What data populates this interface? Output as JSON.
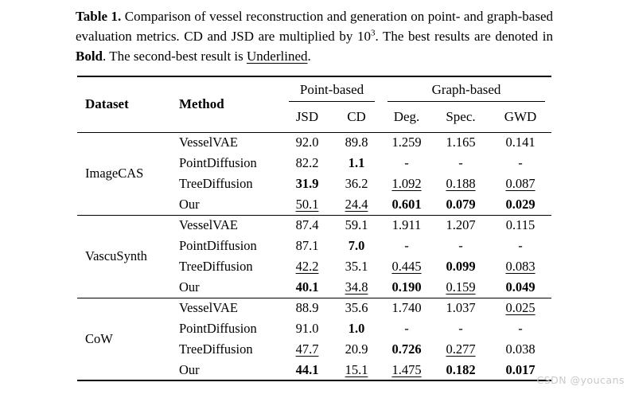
{
  "caption": {
    "label": "Table 1.",
    "part1": " Comparison of vessel reconstruction and generation on point- and graph-based evaluation metrics. CD and JSD are multiplied by 10",
    "exponent": "3",
    "part2": ". The best results are denoted in ",
    "bold_word": "Bold",
    "part3": ". The second-best result is ",
    "underlined_word": "Underlined",
    "part4": "."
  },
  "table": {
    "headers": {
      "dataset": "Dataset",
      "method": "Method",
      "point_group": "Point-based",
      "graph_group": "Graph-based",
      "metrics": [
        "JSD",
        "CD",
        "Deg.",
        "Spec.",
        "GWD"
      ]
    },
    "groups": [
      {
        "dataset": "ImageCAS",
        "rows": [
          {
            "method": "VesselVAE",
            "values": [
              {
                "v": "92.0",
                "s": "p"
              },
              {
                "v": "89.8",
                "s": "p"
              },
              {
                "v": "1.259",
                "s": "p"
              },
              {
                "v": "1.165",
                "s": "p"
              },
              {
                "v": "0.141",
                "s": "p"
              }
            ]
          },
          {
            "method": "PointDiffusion",
            "values": [
              {
                "v": "82.2",
                "s": "p"
              },
              {
                "v": "1.1",
                "s": "b"
              },
              {
                "v": "-",
                "s": "p"
              },
              {
                "v": "-",
                "s": "p"
              },
              {
                "v": "-",
                "s": "p"
              }
            ]
          },
          {
            "method": "TreeDiffusion",
            "values": [
              {
                "v": "31.9",
                "s": "b"
              },
              {
                "v": "36.2",
                "s": "p"
              },
              {
                "v": "1.092",
                "s": "u"
              },
              {
                "v": "0.188",
                "s": "u"
              },
              {
                "v": "0.087",
                "s": "u"
              }
            ]
          },
          {
            "method": "Our",
            "values": [
              {
                "v": "50.1",
                "s": "u"
              },
              {
                "v": "24.4",
                "s": "u"
              },
              {
                "v": "0.601",
                "s": "b"
              },
              {
                "v": "0.079",
                "s": "b"
              },
              {
                "v": "0.029",
                "s": "b"
              }
            ]
          }
        ]
      },
      {
        "dataset": "VascuSynth",
        "rows": [
          {
            "method": "VesselVAE",
            "values": [
              {
                "v": "87.4",
                "s": "p"
              },
              {
                "v": "59.1",
                "s": "p"
              },
              {
                "v": "1.911",
                "s": "p"
              },
              {
                "v": "1.207",
                "s": "p"
              },
              {
                "v": "0.115",
                "s": "p"
              }
            ]
          },
          {
            "method": "PointDiffusion",
            "values": [
              {
                "v": "87.1",
                "s": "p"
              },
              {
                "v": "7.0",
                "s": "b"
              },
              {
                "v": "-",
                "s": "p"
              },
              {
                "v": "-",
                "s": "p"
              },
              {
                "v": "-",
                "s": "p"
              }
            ]
          },
          {
            "method": "TreeDiffusion",
            "values": [
              {
                "v": "42.2",
                "s": "u"
              },
              {
                "v": "35.1",
                "s": "p"
              },
              {
                "v": "0.445",
                "s": "u"
              },
              {
                "v": "0.099",
                "s": "b"
              },
              {
                "v": "0.083",
                "s": "u"
              }
            ]
          },
          {
            "method": "Our",
            "values": [
              {
                "v": "40.1",
                "s": "b"
              },
              {
                "v": "34.8",
                "s": "u"
              },
              {
                "v": "0.190",
                "s": "b"
              },
              {
                "v": "0.159",
                "s": "u"
              },
              {
                "v": "0.049",
                "s": "b"
              }
            ]
          }
        ]
      },
      {
        "dataset": "CoW",
        "rows": [
          {
            "method": "VesselVAE",
            "values": [
              {
                "v": "88.9",
                "s": "p"
              },
              {
                "v": "35.6",
                "s": "p"
              },
              {
                "v": "1.740",
                "s": "p"
              },
              {
                "v": "1.037",
                "s": "p"
              },
              {
                "v": "0.025",
                "s": "u"
              }
            ]
          },
          {
            "method": "PointDiffusion",
            "values": [
              {
                "v": "91.0",
                "s": "p"
              },
              {
                "v": "1.0",
                "s": "b"
              },
              {
                "v": "-",
                "s": "p"
              },
              {
                "v": "-",
                "s": "p"
              },
              {
                "v": "-",
                "s": "p"
              }
            ]
          },
          {
            "method": "TreeDiffusion",
            "values": [
              {
                "v": "47.7",
                "s": "u"
              },
              {
                "v": "20.9",
                "s": "p"
              },
              {
                "v": "0.726",
                "s": "b"
              },
              {
                "v": "0.277",
                "s": "u"
              },
              {
                "v": "0.038",
                "s": "p"
              }
            ]
          },
          {
            "method": "Our",
            "values": [
              {
                "v": "44.1",
                "s": "b"
              },
              {
                "v": "15.1",
                "s": "u"
              },
              {
                "v": "1.475",
                "s": "u"
              },
              {
                "v": "0.182",
                "s": "b"
              },
              {
                "v": "0.017",
                "s": "b"
              }
            ]
          }
        ]
      }
    ]
  },
  "watermark": "CSDN @youcans",
  "colors": {
    "text": "#000000",
    "background": "#ffffff",
    "watermark": "#c9c9c9"
  }
}
